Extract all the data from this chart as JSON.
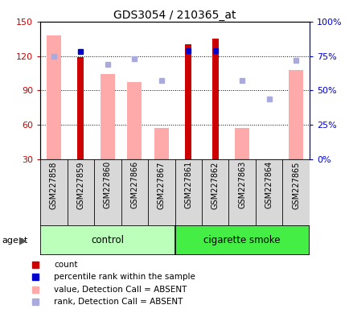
{
  "title": "GDS3054 / 210365_at",
  "samples": [
    "GSM227858",
    "GSM227859",
    "GSM227860",
    "GSM227866",
    "GSM227867",
    "GSM227861",
    "GSM227862",
    "GSM227863",
    "GSM227864",
    "GSM227865"
  ],
  "ylim_left": [
    30,
    150
  ],
  "ylim_right": [
    0,
    100
  ],
  "yticks_left": [
    30,
    60,
    90,
    120,
    150
  ],
  "yticks_right": [
    0,
    25,
    50,
    75,
    100
  ],
  "ytick_labels_left": [
    "30",
    "60",
    "90",
    "120",
    "150"
  ],
  "ytick_labels_right": [
    "0%",
    "25%",
    "50%",
    "75%",
    "100%"
  ],
  "count_values": [
    null,
    119,
    null,
    null,
    null,
    130,
    135,
    null,
    null,
    null
  ],
  "rank_values_pct": [
    null,
    78,
    null,
    null,
    null,
    79,
    79,
    null,
    null,
    null
  ],
  "absent_value_bars": [
    138,
    null,
    104,
    97,
    57,
    null,
    null,
    57,
    30,
    108
  ],
  "absent_rank_pct": [
    75,
    null,
    69,
    73,
    57,
    null,
    null,
    57,
    44,
    72
  ],
  "count_color": "#cc0000",
  "rank_color": "#0000cc",
  "absent_value_color": "#ffaaaa",
  "absent_rank_color": "#aaaadd",
  "control_color": "#bbffbb",
  "smoke_color": "#44ee44",
  "bg_color": "#ffffff",
  "left_axis_color": "#cc0000",
  "right_axis_color": "#0000cc",
  "legend_items": [
    [
      "#cc0000",
      "count"
    ],
    [
      "#0000cc",
      "percentile rank within the sample"
    ],
    [
      "#ffaaaa",
      "value, Detection Call = ABSENT"
    ],
    [
      "#aaaadd",
      "rank, Detection Call = ABSENT"
    ]
  ]
}
